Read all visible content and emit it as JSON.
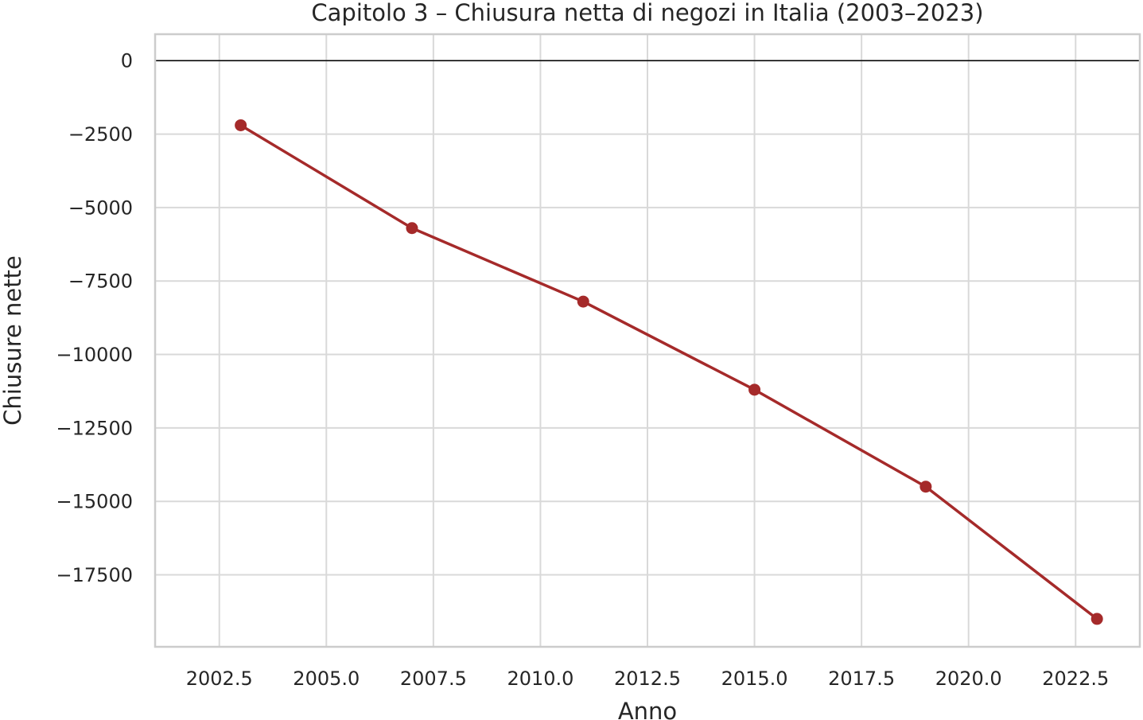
{
  "chart_data": {
    "type": "line",
    "title": "Capitolo 3 – Chiusura netta di negozi in Italia (2003–2023)",
    "xlabel": "Anno",
    "ylabel": "Chiusure nette",
    "x": [
      2003,
      2007,
      2011,
      2015,
      2019,
      2023
    ],
    "series": [
      {
        "values": [
          -2200,
          -5700,
          -8200,
          -11200,
          -14500,
          -19000
        ],
        "color": "#a52a2a"
      }
    ],
    "xlim": [
      2001.0,
      2024.0
    ],
    "ylim": [
      -19950,
      900
    ],
    "x_ticks": [
      2002.5,
      2005.0,
      2007.5,
      2010.0,
      2012.5,
      2015.0,
      2017.5,
      2020.0,
      2022.5
    ],
    "x_tick_labels": [
      "2002.5",
      "2005.0",
      "2007.5",
      "2010.0",
      "2012.5",
      "2015.0",
      "2017.5",
      "2020.0",
      "2022.5"
    ],
    "y_ticks": [
      0,
      -2500,
      -5000,
      -7500,
      -10000,
      -12500,
      -15000,
      -17500
    ],
    "y_tick_labels": [
      "0",
      "−2500",
      "−5000",
      "−7500",
      "−10000",
      "−12500",
      "−15000",
      "−17500"
    ],
    "reference_line_y": 0,
    "grid": true,
    "colors": {
      "line": "#a52a2a",
      "grid": "#d9d9d9",
      "frame": "#cccccc",
      "zero_line": "#000000"
    }
  }
}
